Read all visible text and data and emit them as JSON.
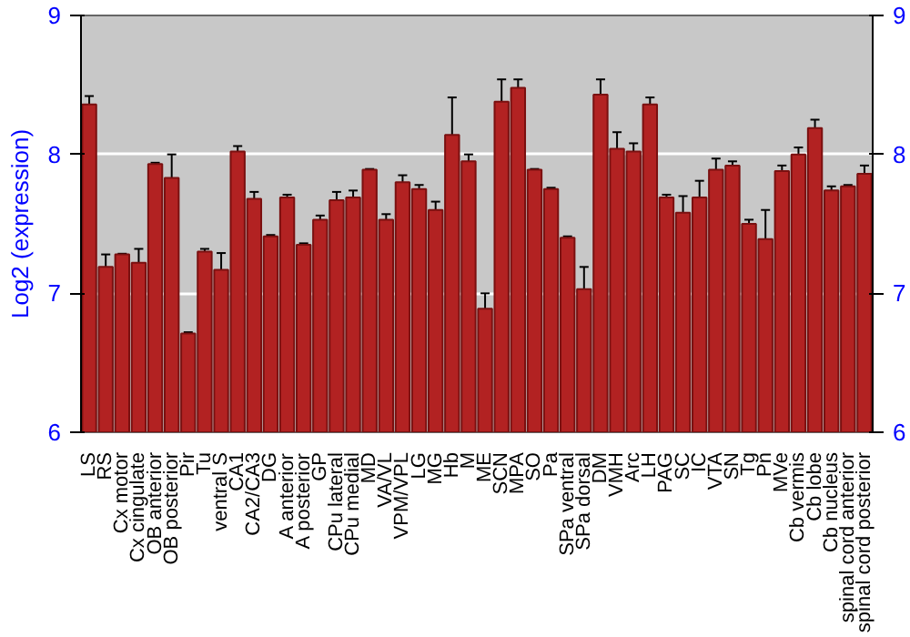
{
  "chart_data": {
    "type": "bar",
    "ylabel": "Log2 (expression)",
    "categories": [
      "LS",
      "RS",
      "Cx motor",
      "Cx cingulate",
      "OB anterior",
      "OB posterior",
      "Pir",
      "Tu",
      "ventral S",
      "CA1",
      "CA2/CA3",
      "DG",
      "A anterior",
      "A posterior",
      "GP",
      "CPu lateral",
      "CPu medial",
      "MD",
      "VA/VL",
      "VPM/VPL",
      "LG",
      "MG",
      "Hb",
      "M",
      "ME",
      "SCN",
      "MPA",
      "SO",
      "Pa",
      "SPa ventral",
      "SPa dorsal",
      "DM",
      "VMH",
      "Arc",
      "LH",
      "PAG",
      "SC",
      "IC",
      "VTA",
      "SN",
      "Tg",
      "Pn",
      "MVe",
      "Cb vermis",
      "Cb lobe",
      "Cb nucleus",
      "spinal cord anterior",
      "spinal cord posterior"
    ],
    "values": [
      8.36,
      7.19,
      7.28,
      7.22,
      7.93,
      7.83,
      6.71,
      7.3,
      7.17,
      8.02,
      7.68,
      7.41,
      7.69,
      7.35,
      7.53,
      7.67,
      7.69,
      7.89,
      7.53,
      7.8,
      7.75,
      7.6,
      8.14,
      7.95,
      6.89,
      8.38,
      8.48,
      7.89,
      7.75,
      7.4,
      7.03,
      8.43,
      8.04,
      8.02,
      8.36,
      7.69,
      7.58,
      7.69,
      7.89,
      7.92,
      7.5,
      7.39,
      7.88,
      8.0,
      8.19,
      7.74,
      7.77,
      7.86
    ],
    "errors": [
      0.06,
      0.09,
      0.005,
      0.1,
      0.01,
      0.17,
      0.01,
      0.02,
      0.12,
      0.04,
      0.05,
      0.01,
      0.02,
      0.01,
      0.03,
      0.06,
      0.05,
      0.005,
      0.04,
      0.05,
      0.03,
      0.06,
      0.27,
      0.05,
      0.11,
      0.16,
      0.06,
      0.005,
      0.01,
      0.01,
      0.16,
      0.11,
      0.12,
      0.06,
      0.05,
      0.02,
      0.12,
      0.12,
      0.08,
      0.03,
      0.03,
      0.21,
      0.04,
      0.05,
      0.06,
      0.03,
      0.01,
      0.06
    ],
    "color": "#b22222",
    "ylim": [
      6,
      9
    ],
    "yticks": [
      6,
      7,
      8,
      9
    ],
    "y2lim": [
      6,
      9
    ],
    "y2ticks": [
      6,
      7,
      8,
      9
    ],
    "grid": "y"
  }
}
